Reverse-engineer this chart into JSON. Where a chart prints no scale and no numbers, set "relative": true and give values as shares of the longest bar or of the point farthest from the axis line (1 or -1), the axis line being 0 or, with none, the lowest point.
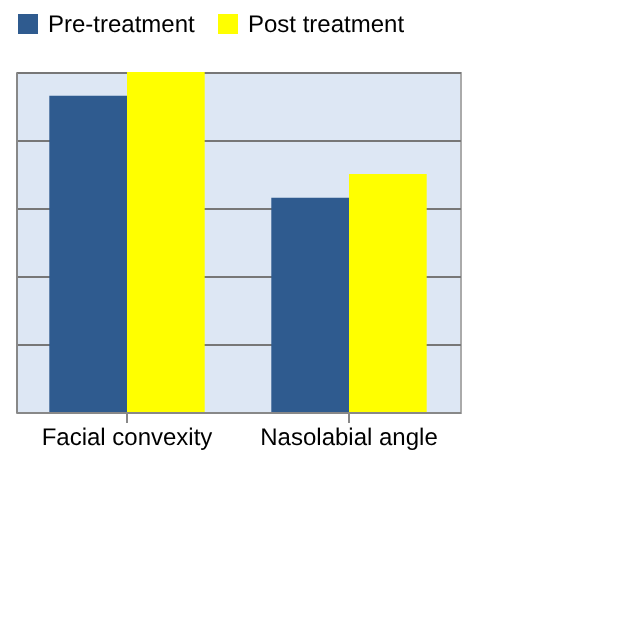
{
  "chart_data": {
    "type": "bar",
    "relative": true,
    "categories": [
      "Facial convexity",
      "Nasolabial angle"
    ],
    "series": [
      {
        "name": "Pre-treatment",
        "color": "#2f5b8f",
        "values": [
          0.93,
          0.63
        ]
      },
      {
        "name": "Post treatment",
        "color": "#ffff00",
        "values": [
          1,
          0.7
        ]
      }
    ],
    "grid": "y",
    "legend": "top"
  }
}
